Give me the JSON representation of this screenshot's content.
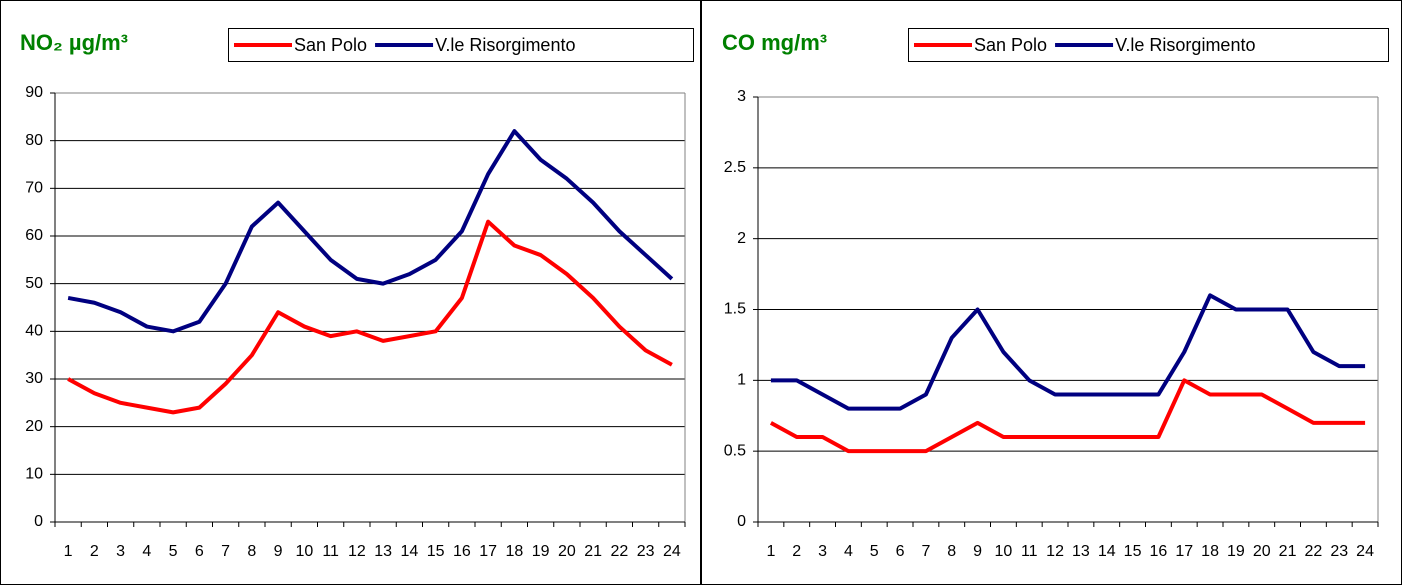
{
  "chart_data": [
    {
      "type": "line",
      "title": "NO₂ µg/m³",
      "categories": [
        "1",
        "2",
        "3",
        "4",
        "5",
        "6",
        "7",
        "8",
        "9",
        "10",
        "11",
        "12",
        "13",
        "14",
        "15",
        "16",
        "17",
        "18",
        "19",
        "20",
        "21",
        "22",
        "23",
        "24"
      ],
      "series": [
        {
          "name": "San Polo",
          "color": "#ff0000",
          "values": [
            30,
            27,
            25,
            24,
            23,
            24,
            29,
            35,
            44,
            41,
            39,
            40,
            38,
            39,
            40,
            47,
            63,
            58,
            56,
            52,
            47,
            41,
            36,
            33
          ]
        },
        {
          "name": "V.le Risorgimento",
          "color": "#000080",
          "values": [
            47,
            46,
            44,
            41,
            40,
            42,
            50,
            62,
            67,
            61,
            55,
            51,
            50,
            52,
            55,
            61,
            73,
            82,
            76,
            72,
            67,
            61,
            56,
            51
          ]
        }
      ],
      "ylim": [
        0,
        90
      ],
      "yticks": [
        0,
        10,
        20,
        30,
        40,
        50,
        60,
        70,
        80,
        90
      ],
      "grid": true
    },
    {
      "type": "line",
      "title": "CO mg/m³",
      "categories": [
        "1",
        "2",
        "3",
        "4",
        "5",
        "6",
        "7",
        "8",
        "9",
        "10",
        "11",
        "12",
        "13",
        "14",
        "15",
        "16",
        "17",
        "18",
        "19",
        "20",
        "21",
        "22",
        "23",
        "24"
      ],
      "series": [
        {
          "name": "San Polo",
          "color": "#ff0000",
          "values": [
            0.7,
            0.6,
            0.6,
            0.5,
            0.5,
            0.5,
            0.5,
            0.6,
            0.7,
            0.6,
            0.6,
            0.6,
            0.6,
            0.6,
            0.6,
            0.6,
            1.0,
            0.9,
            0.9,
            0.9,
            0.8,
            0.7,
            0.7,
            0.7
          ]
        },
        {
          "name": "V.le Risorgimento",
          "color": "#000080",
          "values": [
            1.0,
            1.0,
            0.9,
            0.8,
            0.8,
            0.8,
            0.9,
            1.3,
            1.5,
            1.2,
            1.0,
            0.9,
            0.9,
            0.9,
            0.9,
            0.9,
            1.2,
            1.6,
            1.5,
            1.5,
            1.5,
            1.2,
            1.1,
            1.1
          ]
        }
      ],
      "ylim": [
        0,
        3
      ],
      "yticks": [
        0,
        0.5,
        1,
        1.5,
        2,
        2.5,
        3
      ],
      "grid": true
    }
  ]
}
